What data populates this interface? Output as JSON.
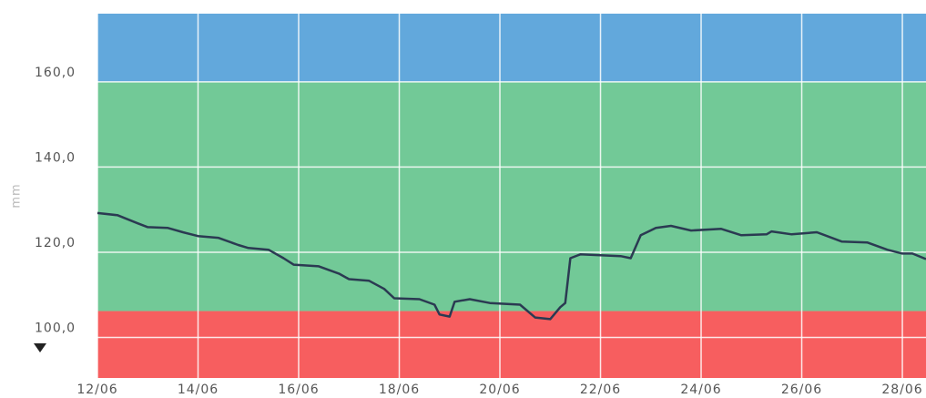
{
  "chart_data": {
    "type": "line",
    "y_label": "mm",
    "x": [
      12,
      12.4,
      12.8,
      13.0,
      13.4,
      13.7,
      14.0,
      14.4,
      14.8,
      15.0,
      15.4,
      15.7,
      15.9,
      16.4,
      16.8,
      17.0,
      17.4,
      17.7,
      17.9,
      18.4,
      18.7,
      18.8,
      19.0,
      19.1,
      19.4,
      19.8,
      20.4,
      20.7,
      21.0,
      21.2,
      21.3,
      21.4,
      21.6,
      22.4,
      22.6,
      22.8,
      23.1,
      23.4,
      23.8,
      24.4,
      24.8,
      25.3,
      25.4,
      25.8,
      26.3,
      26.8,
      27.3,
      27.7,
      28.0,
      28.2,
      28.47
    ],
    "series": [
      {
        "color": "#2b3a52",
        "values": [
          129.2,
          128.7,
          126.8,
          125.9,
          125.7,
          124.7,
          123.8,
          123.4,
          121.7,
          121.0,
          120.6,
          118.6,
          117.1,
          116.7,
          115.0,
          113.7,
          113.3,
          111.4,
          109.2,
          109.0,
          107.7,
          105.4,
          104.9,
          108.4,
          109.0,
          108.1,
          107.7,
          104.7,
          104.3,
          107.1,
          108.1,
          118.6,
          119.5,
          119.1,
          118.6,
          124.0,
          125.7,
          126.2,
          125.1,
          125.5,
          124.0,
          124.2,
          124.9,
          124.2,
          124.7,
          122.5,
          122.3,
          120.6,
          119.7,
          119.7,
          118.4
        ]
      }
    ],
    "bands": [
      {
        "from": 160,
        "to": 176,
        "color": "#62a8dc"
      },
      {
        "from": 106.2,
        "to": 160,
        "color": "#72c997"
      },
      {
        "from": 90.5,
        "to": 106.2,
        "color": "#f75e5f"
      }
    ],
    "xlim": [
      12,
      28.47
    ],
    "ylim": [
      90.5,
      176
    ],
    "xticks": [
      {
        "value": 12,
        "label": "12/06"
      },
      {
        "value": 14,
        "label": "14/06"
      },
      {
        "value": 16,
        "label": "16/06"
      },
      {
        "value": 18,
        "label": "18/06"
      },
      {
        "value": 20,
        "label": "20/06"
      },
      {
        "value": 22,
        "label": "22/06"
      },
      {
        "value": 24,
        "label": "24/06"
      },
      {
        "value": 26,
        "label": "26/06"
      },
      {
        "value": 28,
        "label": "28/06"
      }
    ],
    "yticks": [
      {
        "value": 100,
        "label": "100,0"
      },
      {
        "value": 120,
        "label": "120,0"
      },
      {
        "value": 140,
        "label": "140,0"
      },
      {
        "value": 160,
        "label": "160,0"
      }
    ],
    "grid": true
  }
}
